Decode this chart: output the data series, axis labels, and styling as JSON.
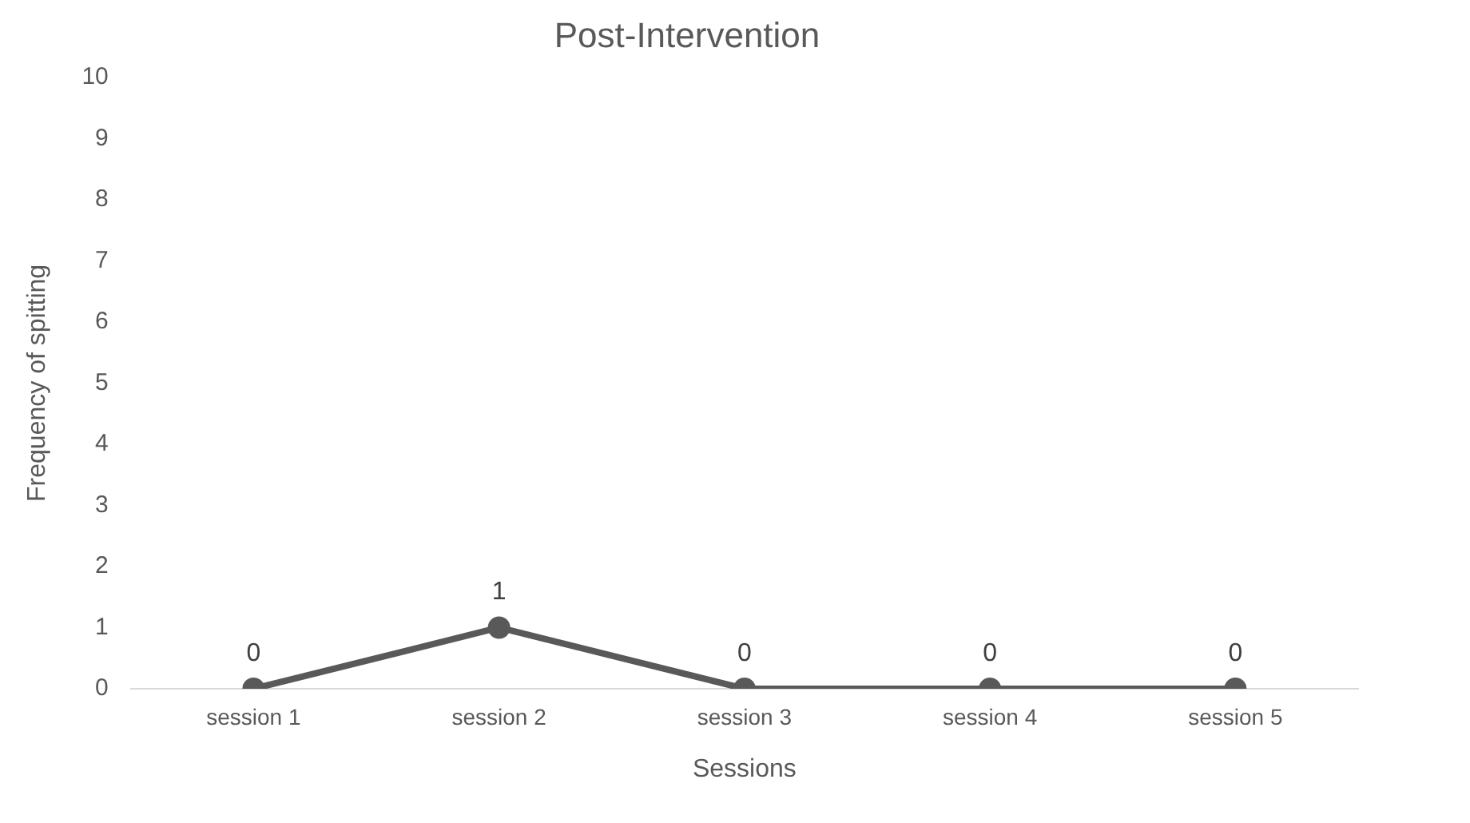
{
  "chart_data": {
    "type": "line",
    "title": "Post-Intervention",
    "xlabel": "Sessions",
    "ylabel": "Frequency of spitting",
    "categories": [
      "session 1",
      "session 2",
      "session 3",
      "session 4",
      "session 5"
    ],
    "series": [
      {
        "color": "#595959",
        "values": [
          0,
          1,
          0,
          0,
          0
        ]
      }
    ],
    "ylim": [
      0,
      10
    ],
    "yticks": [
      0,
      1,
      2,
      3,
      4,
      5,
      6,
      7,
      8,
      9,
      10
    ],
    "grid": false,
    "legend": false,
    "marker": "circle",
    "line_style": "solid",
    "data_labels": true
  }
}
